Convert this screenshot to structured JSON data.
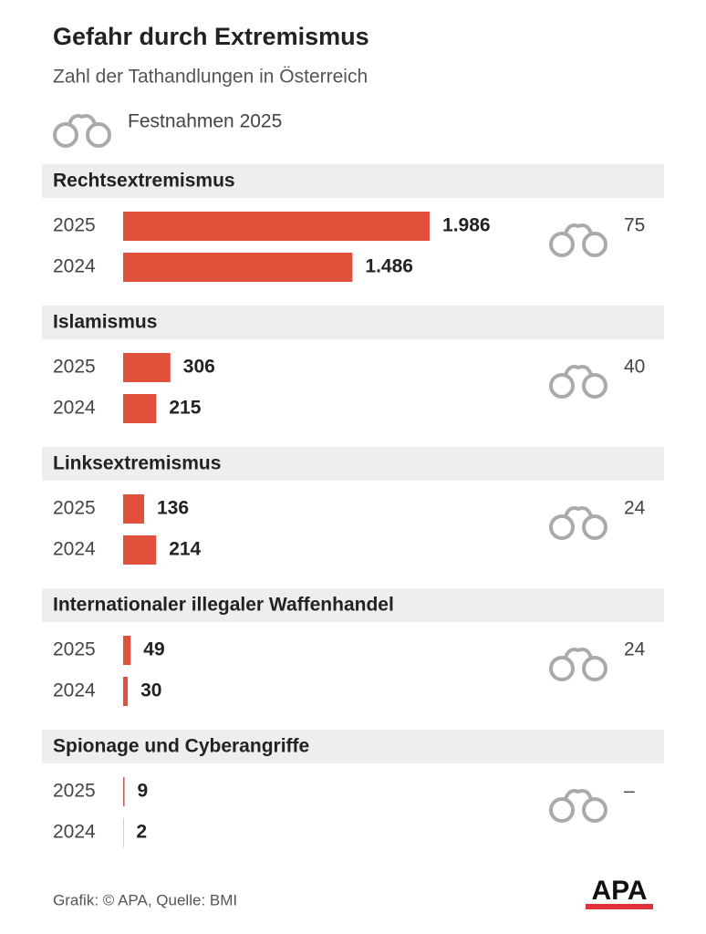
{
  "chart_data": {
    "type": "bar",
    "title": "Gefahr durch Extremismus",
    "subtitle": "Zahl der Tathandlungen in Österreich",
    "categories": [
      "Rechtsextremismus",
      "Islamismus",
      "Linksextremismus",
      "Internationaler illegaler Waffenhandel",
      "Spionage und Cyberangriffe"
    ],
    "series": [
      {
        "name": "2025",
        "color": "#e0503a",
        "values": [
          1986,
          306,
          136,
          49,
          9
        ],
        "value_labels": [
          "1.986",
          "306",
          "136",
          "49",
          "9"
        ]
      },
      {
        "name": "2024",
        "color": "#e0503a",
        "values": [
          1486,
          215,
          214,
          30,
          2
        ],
        "value_labels": [
          "1.486",
          "215",
          "214",
          "30",
          "2"
        ]
      }
    ],
    "arrests": {
      "name": "Festnahmen 2025",
      "values": [
        75,
        40,
        24,
        24,
        null
      ],
      "value_labels": [
        "75",
        "40",
        "24",
        "24",
        "–"
      ]
    },
    "source": "Grafik: © APA, Quelle: BMI",
    "logo": "APA"
  }
}
